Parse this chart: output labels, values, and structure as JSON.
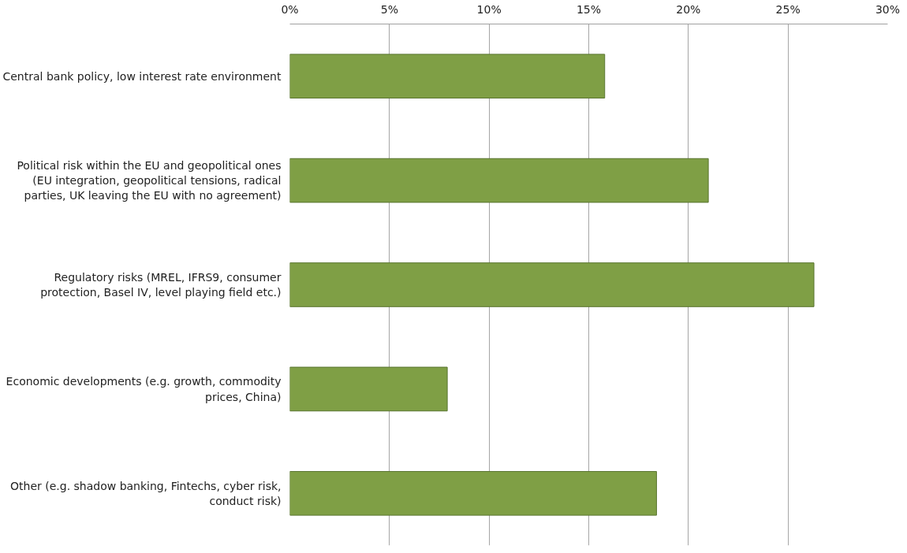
{
  "chart_data": {
    "type": "bar",
    "orientation": "horizontal",
    "categories": [
      "Central bank policy, low interest rate environment",
      "Political risk within the EU and geopolitical ones (EU integration, geopolitical tensions, radical parties, UK leaving the EU with no agreement)",
      "Regulatory risks (MREL, IFRS9, consumer protection, Basel IV, level playing field etc.)",
      "Economic developments (e.g. growth, commodity prices, China)",
      "Other (e.g. shadow banking, Fintechs, cyber risk, conduct risk)"
    ],
    "values": [
      15.8,
      21.0,
      26.3,
      7.9,
      18.4
    ],
    "color": "#7f9f45",
    "xlim": [
      0,
      30
    ],
    "xticks": [
      {
        "value": 0,
        "label": "0%"
      },
      {
        "value": 5,
        "label": "5%"
      },
      {
        "value": 10,
        "label": "10%"
      },
      {
        "value": 15,
        "label": "15%"
      },
      {
        "value": 20,
        "label": "20%"
      },
      {
        "value": 25,
        "label": "25%"
      },
      {
        "value": 30,
        "label": "30%"
      }
    ],
    "grid": "x"
  }
}
